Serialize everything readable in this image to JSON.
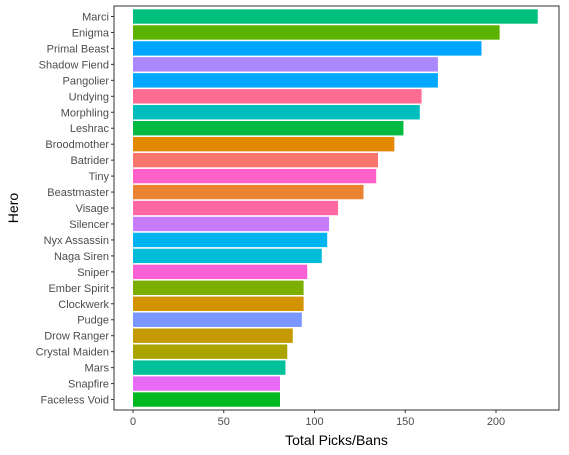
{
  "chart_data": {
    "type": "bar",
    "orientation": "horizontal",
    "xlabel": "Total Picks/Bans",
    "ylabel": "Hero",
    "xlim": [
      0,
      228
    ],
    "x_ticks": [
      0,
      50,
      100,
      150,
      200
    ],
    "grid": false,
    "categories": [
      "Marci",
      "Enigma",
      "Primal Beast",
      "Shadow Fiend",
      "Pangolier",
      "Undying",
      "Morphling",
      "Leshrac",
      "Broodmother",
      "Batrider",
      "Tiny",
      "Beastmaster",
      "Visage",
      "Silencer",
      "Nyx Assassin",
      "Naga Siren",
      "Sniper",
      "Ember Spirit",
      "Clockwerk",
      "Pudge",
      "Drow Ranger",
      "Crystal Maiden",
      "Mars",
      "Snapfire",
      "Faceless Void"
    ],
    "values": [
      223,
      202,
      192,
      168,
      168,
      159,
      158,
      149,
      144,
      135,
      134,
      127,
      113,
      108,
      107,
      104,
      96,
      94,
      94,
      93,
      88,
      85,
      84,
      81,
      81
    ],
    "colors": [
      "#00BF7D",
      "#5BB300",
      "#00A5FF",
      "#AC88FF",
      "#00A9FF",
      "#FF6C91",
      "#00BDBD",
      "#00BA42",
      "#E38900",
      "#F8766D",
      "#FF61C9",
      "#EA8331",
      "#FF68A1",
      "#C77CFF",
      "#00B4EF",
      "#00BCD8",
      "#FB61D7",
      "#7CAE00",
      "#D39200",
      "#7997FF",
      "#C49A00",
      "#ABA300",
      "#00C19A",
      "#E76BF3",
      "#00B81F"
    ]
  }
}
